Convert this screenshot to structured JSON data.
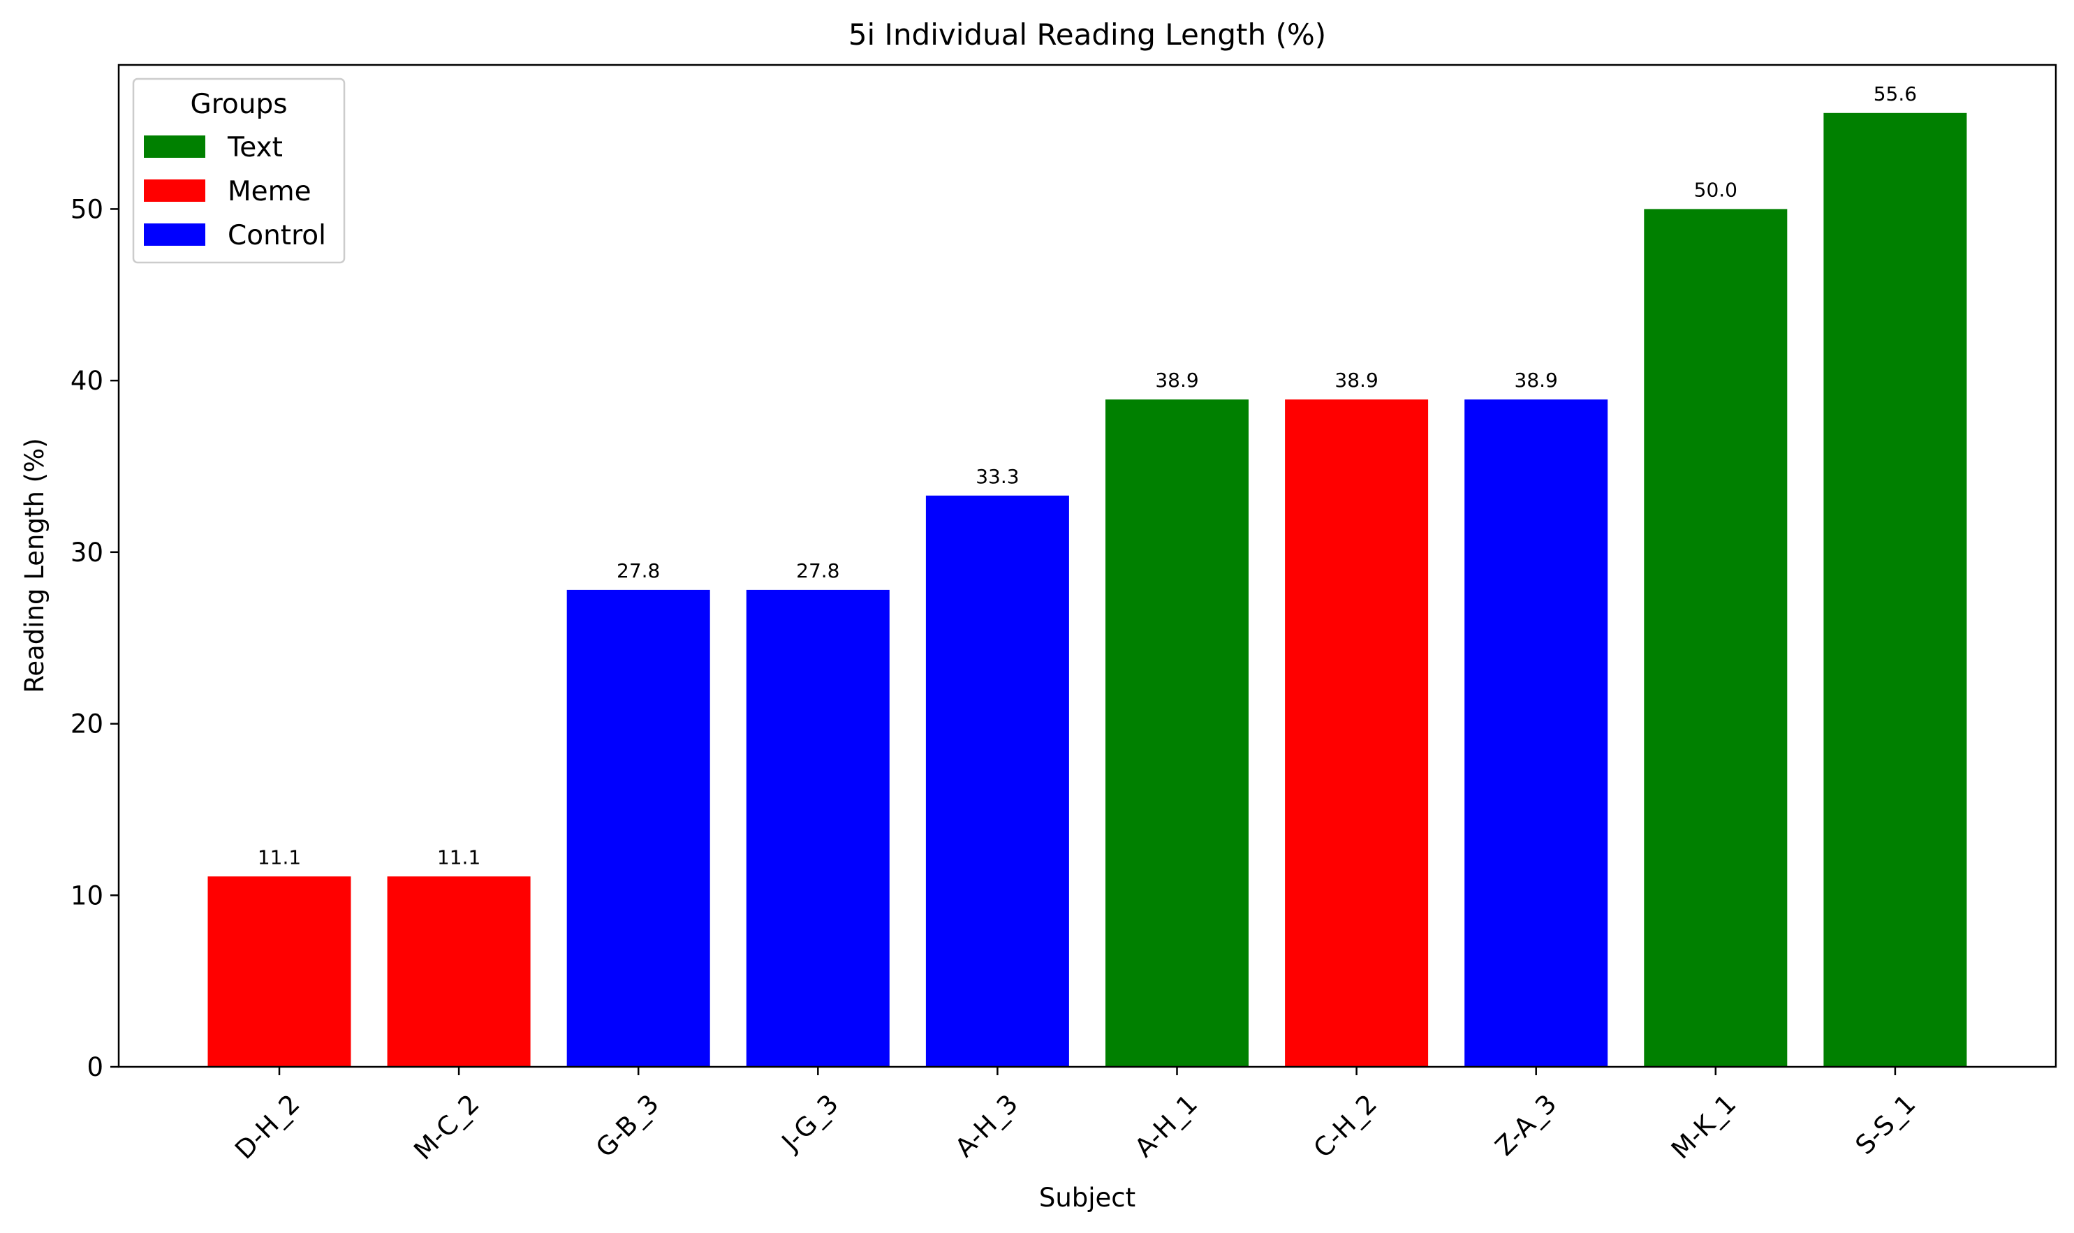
{
  "chart_data": {
    "type": "bar",
    "title": "5i Individual Reading Length (%)",
    "xlabel": "Subject",
    "ylabel": "Reading Length (%)",
    "ylim": [
      0,
      58.4
    ],
    "yticks": [
      0,
      10,
      20,
      30,
      40,
      50
    ],
    "grid": false,
    "legend": {
      "title": "Groups",
      "placement": "top-left",
      "entries": [
        {
          "name": "Text",
          "color": "#008000"
        },
        {
          "name": "Meme",
          "color": "#ff0000"
        },
        {
          "name": "Control",
          "color": "#0000ff"
        }
      ]
    },
    "categories": [
      "D-H_2",
      "M-C_2",
      "G-B_3",
      "J-G_3",
      "A-H_3",
      "A-H_1",
      "C-H_2",
      "Z-A_3",
      "M-K_1",
      "S-S_1"
    ],
    "values": [
      11.1,
      11.1,
      27.8,
      27.8,
      33.3,
      38.9,
      38.9,
      38.9,
      50.0,
      55.6
    ],
    "value_labels": [
      "11.1",
      "11.1",
      "27.8",
      "27.8",
      "33.3",
      "38.9",
      "38.9",
      "38.9",
      "50.0",
      "55.6"
    ],
    "groups": [
      "Meme",
      "Meme",
      "Control",
      "Control",
      "Control",
      "Text",
      "Meme",
      "Control",
      "Text",
      "Text"
    ]
  }
}
